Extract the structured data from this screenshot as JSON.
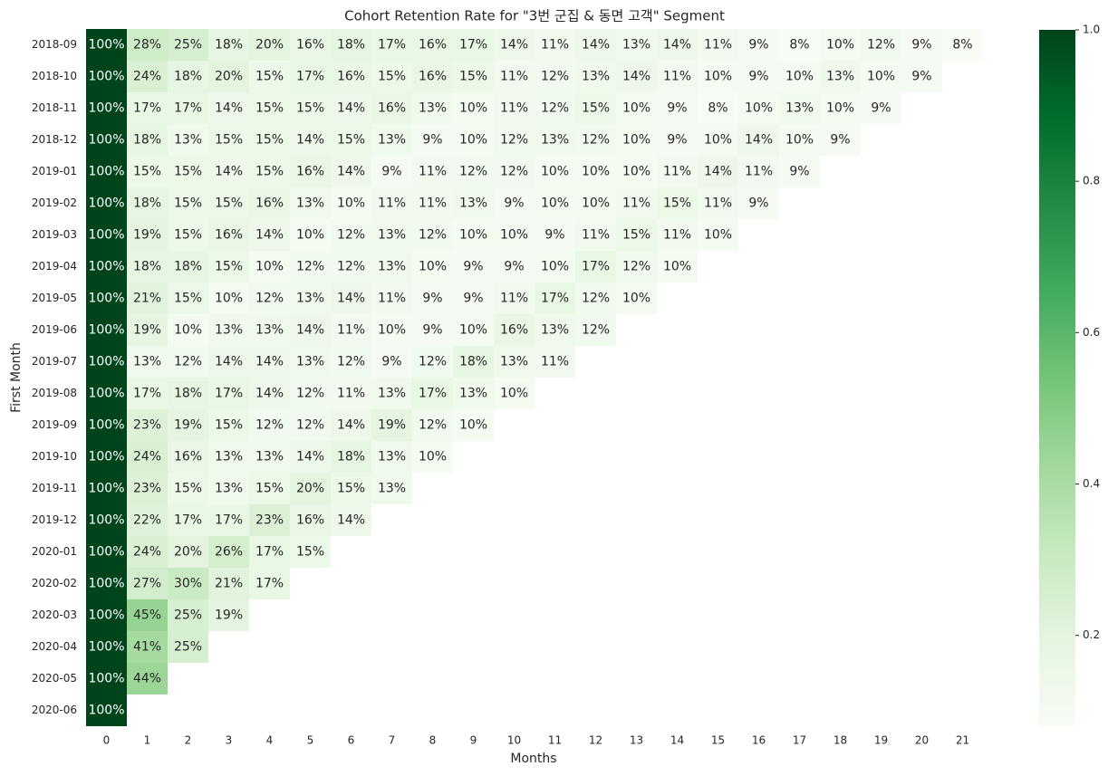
{
  "chart_data": {
    "type": "heatmap",
    "title": "Cohort Retention Rate for \"3번 군집 & 동면 고객\" Segment",
    "x_label": "Months",
    "y_label": "First Month",
    "columns": [
      0,
      1,
      2,
      3,
      4,
      5,
      6,
      7,
      8,
      9,
      10,
      11,
      12,
      13,
      14,
      15,
      16,
      17,
      18,
      19,
      20,
      21
    ],
    "rows": [
      "2018-09",
      "2018-10",
      "2018-11",
      "2018-12",
      "2019-01",
      "2019-02",
      "2019-03",
      "2019-04",
      "2019-05",
      "2019-06",
      "2019-07",
      "2019-08",
      "2019-09",
      "2019-10",
      "2019-11",
      "2019-12",
      "2020-01",
      "2020-02",
      "2020-03",
      "2020-04",
      "2020-05",
      "2020-06"
    ],
    "values": [
      [
        1,
        0.28,
        0.25,
        0.18,
        0.2,
        0.16,
        0.18,
        0.17,
        0.16,
        0.17,
        0.14,
        0.11,
        0.14,
        0.13,
        0.14,
        0.11,
        0.09,
        0.08,
        0.1,
        0.12,
        0.09,
        0.08
      ],
      [
        1,
        0.24,
        0.18,
        0.2,
        0.15,
        0.17,
        0.16,
        0.15,
        0.16,
        0.15,
        0.11,
        0.12,
        0.13,
        0.14,
        0.11,
        0.1,
        0.09,
        0.1,
        0.13,
        0.1,
        0.09
      ],
      [
        1,
        0.17,
        0.17,
        0.14,
        0.15,
        0.15,
        0.14,
        0.16,
        0.13,
        0.1,
        0.11,
        0.12,
        0.15,
        0.1,
        0.09,
        0.08,
        0.1,
        0.13,
        0.1,
        0.09
      ],
      [
        1,
        0.18,
        0.13,
        0.15,
        0.15,
        0.14,
        0.15,
        0.13,
        0.09,
        0.1,
        0.12,
        0.13,
        0.12,
        0.1,
        0.09,
        0.1,
        0.14,
        0.1,
        0.09
      ],
      [
        1,
        0.15,
        0.15,
        0.14,
        0.15,
        0.16,
        0.14,
        0.09,
        0.11,
        0.12,
        0.12,
        0.1,
        0.1,
        0.1,
        0.11,
        0.14,
        0.11,
        0.09
      ],
      [
        1,
        0.18,
        0.15,
        0.15,
        0.16,
        0.13,
        0.1,
        0.11,
        0.11,
        0.13,
        0.09,
        0.1,
        0.1,
        0.11,
        0.15,
        0.11,
        0.09
      ],
      [
        1,
        0.19,
        0.15,
        0.16,
        0.14,
        0.1,
        0.12,
        0.13,
        0.12,
        0.1,
        0.1,
        0.09,
        0.11,
        0.15,
        0.11,
        0.1
      ],
      [
        1,
        0.18,
        0.18,
        0.15,
        0.1,
        0.12,
        0.12,
        0.13,
        0.1,
        0.09,
        0.09,
        0.1,
        0.17,
        0.12,
        0.1
      ],
      [
        1,
        0.21,
        0.15,
        0.1,
        0.12,
        0.13,
        0.14,
        0.11,
        0.09,
        0.09,
        0.11,
        0.17,
        0.12,
        0.1
      ],
      [
        1,
        0.19,
        0.1,
        0.13,
        0.13,
        0.14,
        0.11,
        0.1,
        0.09,
        0.1,
        0.16,
        0.13,
        0.12
      ],
      [
        1,
        0.13,
        0.12,
        0.14,
        0.14,
        0.13,
        0.12,
        0.09,
        0.12,
        0.18,
        0.13,
        0.11
      ],
      [
        1,
        0.17,
        0.18,
        0.17,
        0.14,
        0.12,
        0.11,
        0.13,
        0.17,
        0.13,
        0.1
      ],
      [
        1,
        0.23,
        0.19,
        0.15,
        0.12,
        0.12,
        0.14,
        0.19,
        0.12,
        0.1
      ],
      [
        1,
        0.24,
        0.16,
        0.13,
        0.13,
        0.14,
        0.18,
        0.13,
        0.1
      ],
      [
        1,
        0.23,
        0.15,
        0.13,
        0.15,
        0.2,
        0.15,
        0.13
      ],
      [
        1,
        0.22,
        0.17,
        0.17,
        0.23,
        0.16,
        0.14
      ],
      [
        1,
        0.24,
        0.2,
        0.26,
        0.17,
        0.15
      ],
      [
        1,
        0.27,
        0.3,
        0.21,
        0.17
      ],
      [
        1,
        0.45,
        0.25,
        0.19
      ],
      [
        1,
        0.41,
        0.25
      ],
      [
        1,
        0.44
      ],
      [
        1
      ]
    ],
    "value_labels": [
      [
        "100%",
        "28%",
        "25%",
        "18%",
        "20%",
        "16%",
        "18%",
        "17%",
        "16%",
        "17%",
        "14%",
        "11%",
        "14%",
        "13%",
        "14%",
        "11%",
        "9%",
        "8%",
        "10%",
        "12%",
        "9%",
        "8%"
      ],
      [
        "100%",
        "24%",
        "18%",
        "20%",
        "15%",
        "17%",
        "16%",
        "15%",
        "16%",
        "15%",
        "11%",
        "12%",
        "13%",
        "14%",
        "11%",
        "10%",
        "9%",
        "10%",
        "13%",
        "10%",
        "9%"
      ],
      [
        "100%",
        "17%",
        "17%",
        "14%",
        "15%",
        "15%",
        "14%",
        "16%",
        "13%",
        "10%",
        "11%",
        "12%",
        "15%",
        "10%",
        "9%",
        "8%",
        "10%",
        "13%",
        "10%",
        "9%"
      ],
      [
        "100%",
        "18%",
        "13%",
        "15%",
        "15%",
        "14%",
        "15%",
        "13%",
        "9%",
        "10%",
        "12%",
        "13%",
        "12%",
        "10%",
        "9%",
        "10%",
        "14%",
        "10%",
        "9%"
      ],
      [
        "100%",
        "15%",
        "15%",
        "14%",
        "15%",
        "16%",
        "14%",
        "9%",
        "11%",
        "12%",
        "12%",
        "10%",
        "10%",
        "10%",
        "11%",
        "14%",
        "11%",
        "9%"
      ],
      [
        "100%",
        "18%",
        "15%",
        "15%",
        "16%",
        "13%",
        "10%",
        "11%",
        "11%",
        "13%",
        "9%",
        "10%",
        "10%",
        "11%",
        "15%",
        "11%",
        "9%"
      ],
      [
        "100%",
        "19%",
        "15%",
        "16%",
        "14%",
        "10%",
        "12%",
        "13%",
        "12%",
        "10%",
        "10%",
        "9%",
        "11%",
        "15%",
        "11%",
        "10%"
      ],
      [
        "100%",
        "18%",
        "18%",
        "15%",
        "10%",
        "12%",
        "12%",
        "13%",
        "10%",
        "9%",
        "9%",
        "10%",
        "17%",
        "12%",
        "10%"
      ],
      [
        "100%",
        "21%",
        "15%",
        "10%",
        "12%",
        "13%",
        "14%",
        "11%",
        "9%",
        "9%",
        "11%",
        "17%",
        "12%",
        "10%"
      ],
      [
        "100%",
        "19%",
        "10%",
        "13%",
        "13%",
        "14%",
        "11%",
        "10%",
        "9%",
        "10%",
        "16%",
        "13%",
        "12%"
      ],
      [
        "100%",
        "13%",
        "12%",
        "14%",
        "14%",
        "13%",
        "12%",
        "9%",
        "12%",
        "18%",
        "13%",
        "11%"
      ],
      [
        "100%",
        "17%",
        "18%",
        "17%",
        "14%",
        "12%",
        "11%",
        "13%",
        "17%",
        "13%",
        "10%"
      ],
      [
        "100%",
        "23%",
        "19%",
        "15%",
        "12%",
        "12%",
        "14%",
        "19%",
        "12%",
        "10%"
      ],
      [
        "100%",
        "24%",
        "16%",
        "13%",
        "13%",
        "14%",
        "18%",
        "13%",
        "10%"
      ],
      [
        "100%",
        "23%",
        "15%",
        "13%",
        "15%",
        "20%",
        "15%",
        "13%"
      ],
      [
        "100%",
        "22%",
        "17%",
        "17%",
        "23%",
        "16%",
        "14%"
      ],
      [
        "100%",
        "24%",
        "20%",
        "26%",
        "17%",
        "15%"
      ],
      [
        "100%",
        "27%",
        "30%",
        "21%",
        "17%"
      ],
      [
        "100%",
        "45%",
        "25%",
        "19%"
      ],
      [
        "100%",
        "41%",
        "25%"
      ],
      [
        "100%",
        "44%"
      ],
      [
        "100%"
      ]
    ],
    "colormap": [
      "#f7fcf5",
      "#e5f5e0",
      "#c7e9c0",
      "#a1d99b",
      "#74c476",
      "#41ab5d",
      "#238b45",
      "#006d2c",
      "#00441b"
    ],
    "clim": [
      0.08,
      1
    ],
    "cticks": [
      0.2,
      0.4,
      0.6,
      0.8,
      {
        "value": 1,
        "label": "1.0"
      }
    ]
  }
}
